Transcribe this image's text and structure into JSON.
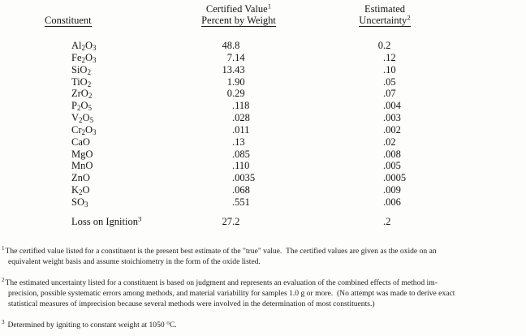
{
  "table": {
    "columns": {
      "constituent_header": "Constituent",
      "certified_header_line1": "Certified Value",
      "certified_header_sup": "1",
      "certified_header_line2": "Percent by Weight",
      "uncertainty_header_line1": "Estimated",
      "uncertainty_header_line2": "Uncertainty",
      "uncertainty_header_sup": "2"
    },
    "rows": [
      {
        "constituent": "Al2O3",
        "certified_value": "48.8",
        "uncertainty": "0.2"
      },
      {
        "constituent": "Fe2O3",
        "certified_value": "7.14",
        "uncertainty": ".12"
      },
      {
        "constituent": "SiO2",
        "certified_value": "13.43",
        "uncertainty": ".10"
      },
      {
        "constituent": "TiO2",
        "certified_value": "1.90",
        "uncertainty": ".05"
      },
      {
        "constituent": "ZrO2",
        "certified_value": "0.29",
        "uncertainty": ".07"
      },
      {
        "constituent": "P2O5",
        "certified_value": ".118",
        "uncertainty": ".004"
      },
      {
        "constituent": "V2O5",
        "certified_value": ".028",
        "uncertainty": ".003"
      },
      {
        "constituent": "Cr2O3",
        "certified_value": ".011",
        "uncertainty": ".002"
      },
      {
        "constituent": "CaO",
        "certified_value": ".13",
        "uncertainty": ".02"
      },
      {
        "constituent": "MgO",
        "certified_value": ".085",
        "uncertainty": ".008"
      },
      {
        "constituent": "MnO",
        "certified_value": ".110",
        "uncertainty": ".005"
      },
      {
        "constituent": "ZnO",
        "certified_value": ".0035",
        "uncertainty": ".0005"
      },
      {
        "constituent": "K2O",
        "certified_value": ".068",
        "uncertainty": ".009"
      },
      {
        "constituent": "SO3",
        "certified_value": ".551",
        "uncertainty": ".006"
      }
    ],
    "loss_row": {
      "label": "Loss on Ignition",
      "footnote_marker": "3",
      "certified_value": "27.2",
      "uncertainty": ".2"
    }
  },
  "footnotes": [
    {
      "marker": "1",
      "lines": [
        "The certified value listed for a constituent is the present best estimate of the \"true\" value.  The certified values are given as the oxide on an",
        "equivalent weight basis and assume stoichiometry in the form of the oxide listed."
      ]
    },
    {
      "marker": "2",
      "lines": [
        "The estimated uncertainty listed for a constituent is based on judgment and represents an evaluation of the combined effects of method im-",
        "precision, possible systematic errors among methods, and material variability for samples 1.0 g or more.  (No attempt was made to derive exact",
        "statistical measures of imprecision because several methods were involved in the determination of most constituents.)"
      ]
    },
    {
      "marker": "3",
      "lines": [
        "Determined by igniting to constant weight at 1050 °C."
      ]
    }
  ]
}
